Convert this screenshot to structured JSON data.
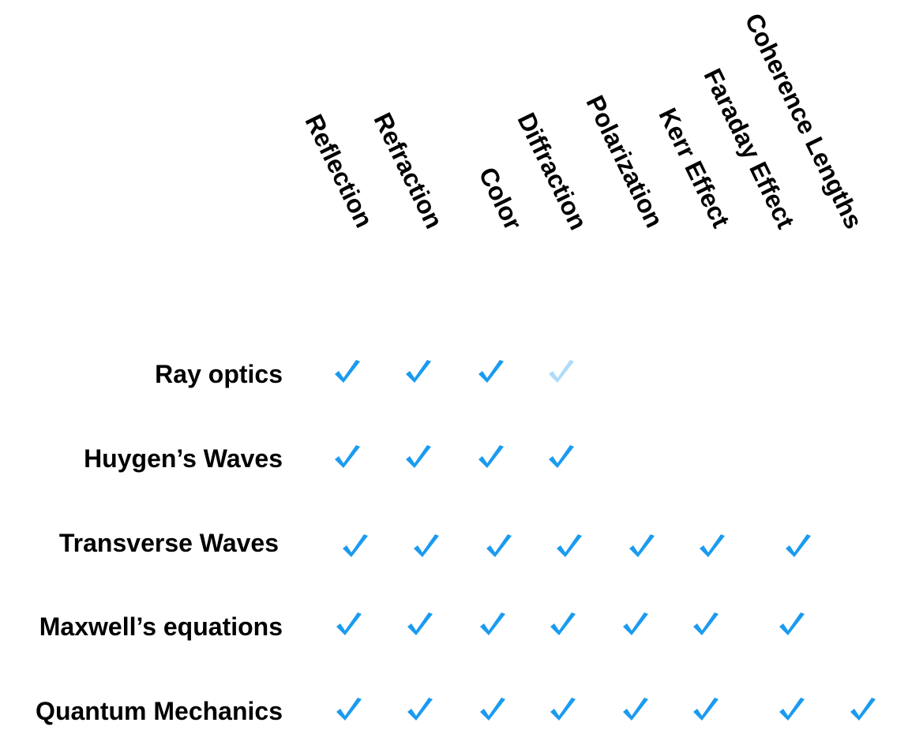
{
  "columns": [
    "Reflection",
    "Refraction",
    "Color",
    "Diffraction",
    "Polarization",
    "Kerr Effect",
    "Faraday Effect",
    "Coherence Lengths"
  ],
  "rows": [
    "Ray optics",
    "Huygen’s Waves",
    "Transverse Waves",
    "Maxwell’s equations",
    "Quantum Mechanics"
  ],
  "checks": [
    [
      "yes",
      "yes",
      "yes",
      "faint",
      "",
      "",
      "",
      ""
    ],
    [
      "yes",
      "yes",
      "yes",
      "yes",
      "",
      "",
      "",
      ""
    ],
    [
      "yes",
      "yes",
      "yes",
      "yes",
      "yes",
      "yes",
      "yes",
      ""
    ],
    [
      "yes",
      "yes",
      "yes",
      "yes",
      "yes",
      "yes",
      "yes",
      ""
    ],
    [
      "yes",
      "yes",
      "yes",
      "yes",
      "yes",
      "yes",
      "yes",
      "yes"
    ]
  ],
  "colors": {
    "check": "#1a9bf0",
    "text": "#000000"
  },
  "icons": {
    "check": "checkmark-icon"
  }
}
